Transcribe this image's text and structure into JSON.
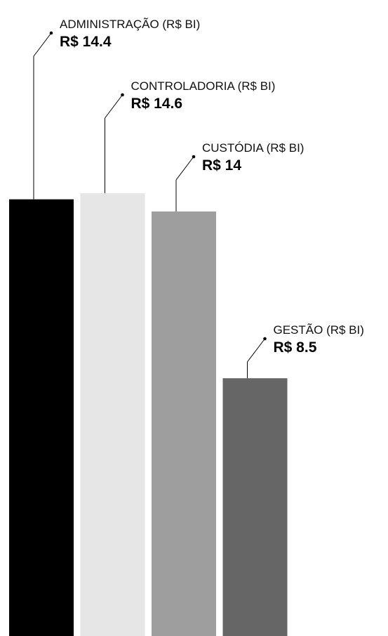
{
  "chart_data": {
    "type": "bar",
    "categories": [
      "ADMINISTRAÇÃO (R$ BI)",
      "CONTROLADORIA (R$ BI)",
      "CUSTÓDIA (R$ BI)",
      "GESTÃO (R$ BI)"
    ],
    "values": [
      14.4,
      14.6,
      14,
      8.5
    ],
    "value_labels": [
      "R$ 14.4",
      "R$ 14.6",
      "R$ 14",
      "R$ 8.5"
    ],
    "colors": [
      "#000000",
      "#e6e6e6",
      "#9e9e9e",
      "#666666"
    ],
    "ylim": [
      0,
      14.6
    ],
    "grid": false,
    "axes_visible": false
  }
}
